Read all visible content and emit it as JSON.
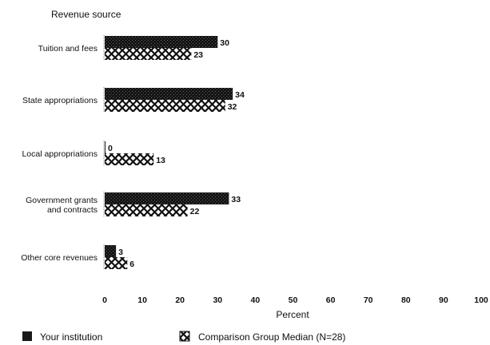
{
  "chart_data": {
    "type": "bar",
    "orientation": "horizontal",
    "title": "Revenue source",
    "xlabel": "Percent",
    "ylabel": "",
    "xlim": [
      0,
      100
    ],
    "xticks": [
      "0",
      "10",
      "20",
      "30",
      "40",
      "50",
      "60",
      "70",
      "80",
      "90",
      "100"
    ],
    "categories": [
      [
        "Tuition and fees"
      ],
      [
        "State appropriations"
      ],
      [
        "Local appropriations"
      ],
      [
        "Government grants",
        "and contracts"
      ],
      [
        "Other core revenues"
      ]
    ],
    "series": [
      {
        "name": "Your institution",
        "values": [
          30,
          34,
          0,
          33,
          3
        ],
        "labels": [
          "30",
          "34",
          "0",
          "33",
          "3"
        ],
        "color": "#1a1a1a",
        "pattern": "solid-dark"
      },
      {
        "name": "Comparison Group Median (N=28)",
        "values": [
          23,
          32,
          13,
          22,
          6
        ],
        "labels": [
          "23",
          "32",
          "13",
          "22",
          "6"
        ],
        "color": "#1a1a1a",
        "pattern": "crosshatch"
      }
    ],
    "grid": false,
    "legend_position": "bottom"
  }
}
